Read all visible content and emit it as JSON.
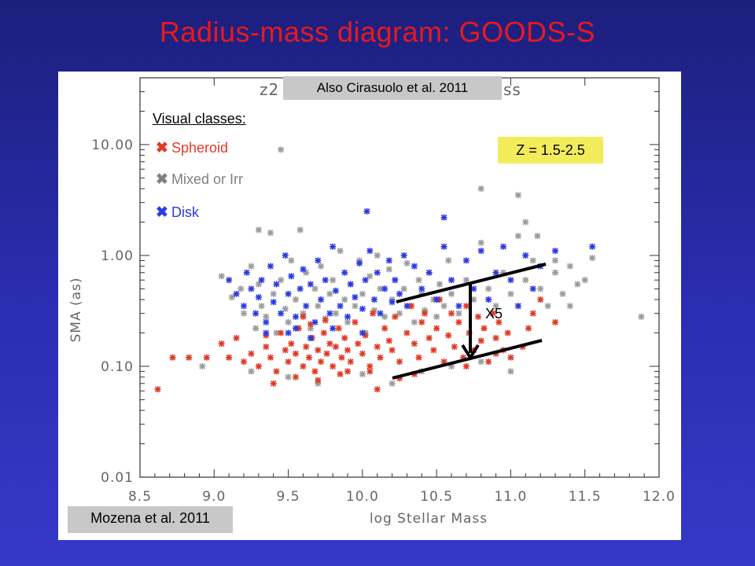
{
  "slide": {
    "title": "Radius-mass diagram: GOODS-S"
  },
  "annotations": {
    "also": "Also Cirasuolo et al. 2011",
    "redshift": "Z = 1.5-2.5",
    "reference": "Mozena et al. 2011",
    "factor": "X5",
    "occluded_title_left": "z2",
    "occluded_title_right": "ss"
  },
  "legend": {
    "title": "Visual classes:",
    "items": [
      {
        "label": "Spheroid",
        "color": "#e03a26",
        "marker": "x-cross-icon"
      },
      {
        "label": "Mixed or Irr",
        "color": "#808080",
        "marker": "x-cross-icon"
      },
      {
        "label": "Disk",
        "color": "#2b3be3",
        "marker": "x-cross-icon"
      }
    ]
  },
  "chart_data": {
    "type": "scatter",
    "xlabel": "log Stellar Mass",
    "ylabel": "SMA (as)",
    "xlim": [
      8.5,
      12.0
    ],
    "ylim": [
      0.01,
      40
    ],
    "yscale": "log",
    "xticks": [
      "8.5",
      "9.0",
      "9.5",
      "10.0",
      "10.5",
      "11.0",
      "11.5",
      "12.0"
    ],
    "yticks": [
      {
        "value": 0.01,
        "label": "0.01"
      },
      {
        "value": 0.1,
        "label": "0.10"
      },
      {
        "value": 1,
        "label": "1.00"
      },
      {
        "value": 10,
        "label": "10.00"
      }
    ],
    "grid": false,
    "series": [
      {
        "name": "Spheroid",
        "color": "#e03a26",
        "points": [
          [
            8.62,
            0.062
          ],
          [
            8.72,
            0.12
          ],
          [
            8.83,
            0.12
          ],
          [
            8.95,
            0.12
          ],
          [
            9.05,
            0.16
          ],
          [
            9.1,
            0.12
          ],
          [
            9.15,
            0.18
          ],
          [
            9.2,
            0.11
          ],
          [
            9.25,
            0.13
          ],
          [
            9.3,
            0.1
          ],
          [
            9.35,
            0.15
          ],
          [
            9.38,
            0.12
          ],
          [
            9.42,
            0.09
          ],
          [
            9.45,
            0.2
          ],
          [
            9.48,
            0.14
          ],
          [
            9.5,
            0.11
          ],
          [
            9.52,
            0.16
          ],
          [
            9.55,
            0.13
          ],
          [
            9.57,
            0.22
          ],
          [
            9.6,
            0.1
          ],
          [
            9.62,
            0.15
          ],
          [
            9.64,
            0.12
          ],
          [
            9.66,
            0.18
          ],
          [
            9.68,
            0.09
          ],
          [
            9.7,
            0.14
          ],
          [
            9.72,
            0.11
          ],
          [
            9.74,
            0.2
          ],
          [
            9.76,
            0.13
          ],
          [
            9.78,
            0.16
          ],
          [
            9.8,
            0.1
          ],
          [
            9.82,
            0.15
          ],
          [
            9.84,
            0.22
          ],
          [
            9.86,
            0.12
          ],
          [
            9.88,
            0.18
          ],
          [
            9.9,
            0.14
          ],
          [
            9.92,
            0.11
          ],
          [
            9.95,
            0.25
          ],
          [
            9.97,
            0.16
          ],
          [
            10.0,
            0.13
          ],
          [
            10.02,
            0.19
          ],
          [
            10.05,
            0.1
          ],
          [
            10.07,
            0.3
          ],
          [
            10.1,
            0.15
          ],
          [
            10.12,
            0.12
          ],
          [
            10.15,
            0.22
          ],
          [
            10.18,
            0.17
          ],
          [
            10.2,
            0.14
          ],
          [
            10.22,
            0.28
          ],
          [
            10.25,
            0.11
          ],
          [
            10.3,
            0.2
          ],
          [
            10.33,
            0.35
          ],
          [
            10.35,
            0.16
          ],
          [
            10.38,
            0.12
          ],
          [
            10.4,
            0.25
          ],
          [
            10.42,
            0.3
          ],
          [
            10.45,
            0.18
          ],
          [
            10.48,
            0.14
          ],
          [
            10.5,
            0.22
          ],
          [
            10.52,
            0.4
          ],
          [
            10.55,
            0.11
          ],
          [
            10.58,
            0.19
          ],
          [
            10.6,
            0.3
          ],
          [
            10.62,
            0.15
          ],
          [
            10.65,
            0.25
          ],
          [
            10.68,
            0.12
          ],
          [
            10.7,
            0.35
          ],
          [
            10.72,
            0.2
          ],
          [
            10.75,
            0.14
          ],
          [
            10.78,
            0.28
          ],
          [
            10.8,
            0.17
          ],
          [
            10.82,
            0.22
          ],
          [
            10.85,
            0.11
          ],
          [
            10.88,
            0.3
          ],
          [
            10.9,
            0.18
          ],
          [
            10.92,
            0.25
          ],
          [
            10.95,
            0.14
          ],
          [
            10.98,
            0.2
          ],
          [
            11.0,
            0.12
          ],
          [
            11.05,
            0.35
          ],
          [
            11.08,
            0.15
          ],
          [
            11.12,
            0.22
          ],
          [
            11.15,
            0.3
          ],
          [
            11.2,
            0.4
          ],
          [
            11.3,
            0.25
          ],
          [
            9.4,
            0.07
          ],
          [
            9.55,
            0.08
          ],
          [
            9.7,
            0.075
          ],
          [
            9.85,
            0.085
          ],
          [
            10.05,
            0.09
          ],
          [
            10.1,
            0.062
          ],
          [
            10.25,
            0.078
          ],
          [
            9.35,
            0.19
          ],
          [
            9.65,
            0.24
          ],
          [
            9.75,
            0.26
          ],
          [
            9.6,
            0.28
          ],
          [
            9.9,
            0.09
          ],
          [
            10.35,
            0.085
          ],
          [
            10.7,
            0.1
          ],
          [
            10.9,
            0.13
          ]
        ]
      },
      {
        "name": "Mixed or Irr",
        "color": "#9c9c9c",
        "points": [
          [
            9.05,
            0.65
          ],
          [
            9.12,
            0.42
          ],
          [
            9.18,
            0.5
          ],
          [
            9.2,
            0.3
          ],
          [
            9.25,
            0.8
          ],
          [
            9.28,
            0.22
          ],
          [
            9.3,
            0.55
          ],
          [
            9.32,
            0.35
          ],
          [
            9.35,
            0.28
          ],
          [
            9.38,
            1.6
          ],
          [
            9.4,
            0.45
          ],
          [
            9.42,
            0.2
          ],
          [
            9.45,
            0.6
          ],
          [
            9.48,
            0.33
          ],
          [
            9.5,
            0.25
          ],
          [
            9.52,
            0.9
          ],
          [
            9.55,
            0.4
          ],
          [
            9.58,
            1.7
          ],
          [
            9.6,
            0.3
          ],
          [
            9.62,
            0.7
          ],
          [
            9.65,
            0.22
          ],
          [
            9.68,
            0.5
          ],
          [
            9.7,
            0.35
          ],
          [
            9.72,
            0.8
          ],
          [
            9.75,
            0.27
          ],
          [
            9.78,
            0.45
          ],
          [
            9.8,
            0.6
          ],
          [
            9.82,
            0.3
          ],
          [
            9.85,
            1.1
          ],
          [
            9.88,
            0.4
          ],
          [
            9.9,
            0.25
          ],
          [
            9.92,
            0.55
          ],
          [
            9.95,
            0.35
          ],
          [
            9.98,
            0.9
          ],
          [
            10.0,
            0.45
          ],
          [
            10.02,
            0.2
          ],
          [
            10.05,
            0.65
          ],
          [
            10.08,
            0.32
          ],
          [
            10.1,
            1.0
          ],
          [
            10.12,
            0.5
          ],
          [
            10.15,
            0.28
          ],
          [
            10.18,
            0.75
          ],
          [
            10.2,
            0.4
          ],
          [
            10.22,
            0.6
          ],
          [
            10.25,
            0.3
          ],
          [
            10.28,
            0.5
          ],
          [
            10.3,
            0.85
          ],
          [
            10.32,
            0.35
          ],
          [
            10.35,
            0.25
          ],
          [
            10.38,
            0.6
          ],
          [
            10.4,
            0.45
          ],
          [
            10.42,
            0.32
          ],
          [
            10.45,
            0.7
          ],
          [
            10.48,
            0.4
          ],
          [
            10.5,
            0.28
          ],
          [
            10.52,
            0.55
          ],
          [
            10.55,
            0.35
          ],
          [
            10.58,
            0.9
          ],
          [
            10.6,
            0.45
          ],
          [
            10.65,
            0.3
          ],
          [
            10.7,
            0.6
          ],
          [
            10.75,
            0.4
          ],
          [
            10.8,
            1.3
          ],
          [
            10.85,
            0.5
          ],
          [
            10.9,
            0.35
          ],
          [
            10.95,
            0.7
          ],
          [
            11.0,
            0.45
          ],
          [
            11.05,
            1.5
          ],
          [
            11.1,
            0.6
          ],
          [
            11.15,
            0.9
          ],
          [
            11.2,
            0.5
          ],
          [
            11.25,
            0.35
          ],
          [
            11.3,
            0.7
          ],
          [
            11.35,
            0.45
          ],
          [
            11.4,
            0.8
          ],
          [
            11.45,
            0.55
          ],
          [
            11.55,
            0.95
          ],
          [
            11.88,
            0.28
          ],
          [
            9.45,
            9.0
          ],
          [
            10.8,
            4.0
          ],
          [
            11.05,
            3.5
          ],
          [
            11.1,
            2.0
          ],
          [
            11.18,
            1.5
          ],
          [
            11.3,
            0.9
          ],
          [
            8.92,
            0.1
          ],
          [
            9.1,
            0.12
          ],
          [
            9.25,
            0.09
          ],
          [
            9.5,
            0.08
          ],
          [
            9.7,
            0.07
          ],
          [
            10.0,
            0.085
          ],
          [
            10.2,
            0.07
          ],
          [
            10.4,
            0.09
          ],
          [
            10.6,
            0.1
          ],
          [
            10.8,
            0.11
          ],
          [
            11.0,
            0.09
          ],
          [
            9.3,
            1.7
          ],
          [
            11.5,
            0.6
          ],
          [
            11.4,
            0.35
          ]
        ]
      },
      {
        "name": "Disk",
        "color": "#2b3be3",
        "points": [
          [
            9.1,
            0.6
          ],
          [
            9.15,
            0.45
          ],
          [
            9.2,
            0.35
          ],
          [
            9.22,
            0.7
          ],
          [
            9.25,
            0.5
          ],
          [
            9.28,
            0.3
          ],
          [
            9.3,
            0.42
          ],
          [
            9.32,
            0.6
          ],
          [
            9.35,
            0.25
          ],
          [
            9.38,
            0.8
          ],
          [
            9.4,
            0.38
          ],
          [
            9.42,
            0.55
          ],
          [
            9.45,
            0.3
          ],
          [
            9.48,
            1.0
          ],
          [
            9.5,
            0.45
          ],
          [
            9.52,
            0.65
          ],
          [
            9.55,
            0.28
          ],
          [
            9.58,
            0.5
          ],
          [
            9.6,
            0.75
          ],
          [
            9.62,
            0.35
          ],
          [
            9.65,
            0.55
          ],
          [
            9.68,
            0.25
          ],
          [
            9.7,
            0.9
          ],
          [
            9.72,
            0.4
          ],
          [
            9.75,
            0.6
          ],
          [
            9.78,
            0.3
          ],
          [
            9.8,
            1.2
          ],
          [
            9.82,
            0.48
          ],
          [
            9.85,
            0.35
          ],
          [
            9.88,
            0.7
          ],
          [
            9.9,
            0.28
          ],
          [
            9.92,
            0.55
          ],
          [
            9.95,
            0.42
          ],
          [
            9.98,
            0.85
          ],
          [
            10.0,
            0.33
          ],
          [
            10.02,
            0.6
          ],
          [
            10.05,
            1.1
          ],
          [
            10.08,
            0.4
          ],
          [
            10.1,
            0.7
          ],
          [
            10.12,
            0.3
          ],
          [
            10.15,
            0.5
          ],
          [
            10.18,
            0.9
          ],
          [
            10.2,
            0.38
          ],
          [
            10.22,
            0.6
          ],
          [
            10.25,
            0.45
          ],
          [
            10.28,
            1.0
          ],
          [
            10.3,
            0.35
          ],
          [
            10.35,
            0.8
          ],
          [
            10.4,
            0.5
          ],
          [
            10.45,
            0.7
          ],
          [
            10.5,
            0.4
          ],
          [
            10.55,
            1.2
          ],
          [
            10.6,
            0.6
          ],
          [
            10.65,
            0.35
          ],
          [
            10.7,
            0.9
          ],
          [
            10.75,
            0.5
          ],
          [
            10.8,
            1.1
          ],
          [
            10.85,
            0.4
          ],
          [
            10.9,
            0.7
          ],
          [
            10.95,
            1.2
          ],
          [
            11.0,
            0.6
          ],
          [
            11.05,
            0.35
          ],
          [
            11.1,
            1.0
          ],
          [
            11.15,
            0.5
          ],
          [
            11.2,
            0.8
          ],
          [
            11.3,
            1.1
          ],
          [
            11.55,
            1.2
          ],
          [
            10.03,
            2.5
          ],
          [
            10.55,
            2.2
          ],
          [
            9.5,
            0.2
          ],
          [
            9.65,
            0.18
          ],
          [
            9.8,
            0.22
          ],
          [
            10.0,
            0.2
          ],
          [
            9.35,
            0.2
          ],
          [
            9.55,
            0.22
          ]
        ]
      }
    ]
  }
}
